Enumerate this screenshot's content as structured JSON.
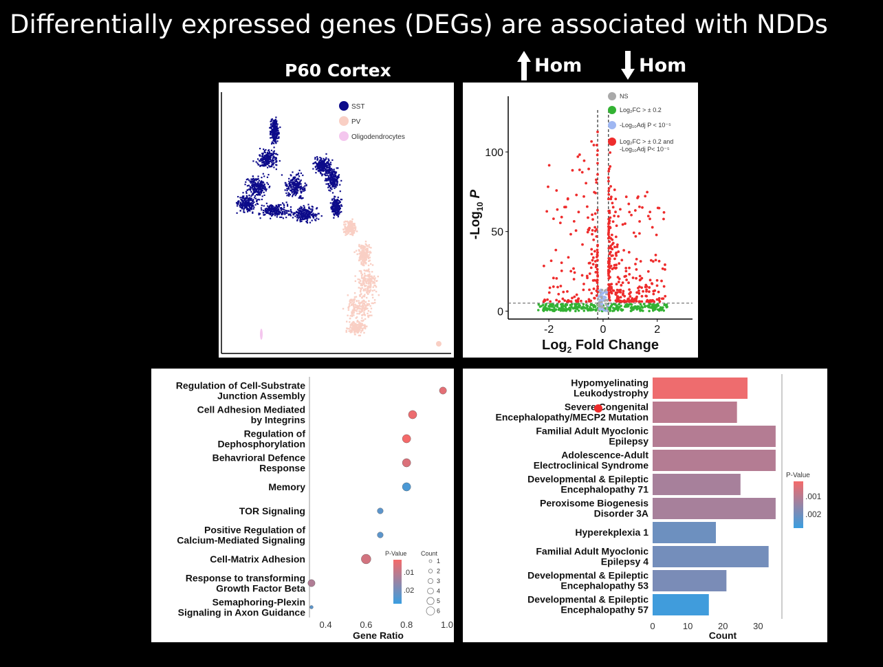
{
  "slide": {
    "title": "Differentially expressed genes (DEGs) are associated with NDDs",
    "umap_title": "P60 Cortex",
    "up_label": "Hom",
    "down_label": "Hom"
  },
  "colors": {
    "sst": "#0d0b8a",
    "pv": "#f9cfc4",
    "oligo": "#f4c6ee",
    "ns": "#a9a9a9",
    "fc": "#33b233",
    "p": "#9fb7f2",
    "both": "#ee2c2c",
    "pval_low": "#f46a6a",
    "pval_high": "#3a9ee0"
  },
  "chart_data": [
    {
      "type": "scatter",
      "name": "umap",
      "legend": [
        {
          "label": "SST",
          "color": "#0d0b8a"
        },
        {
          "label": "PV",
          "color": "#f9cfc4"
        },
        {
          "label": "Oligodendrocytes",
          "color": "#f4c6ee"
        }
      ],
      "legend_position": "top-right"
    },
    {
      "type": "scatter",
      "name": "volcano",
      "xlabel_main": "Log",
      "xlabel_sub": "2",
      "xlabel_tail": " Fold Change",
      "ylabel_main": "-Log",
      "ylabel_sub": "10",
      "ylabel_tail": " P",
      "xlim": [
        -3.5,
        3.3
      ],
      "ylim": [
        -5,
        135
      ],
      "x_ticks": [
        -2,
        0,
        2
      ],
      "y_ticks": [
        0,
        50,
        100
      ],
      "fc_cutoff": 0.2,
      "p_cutoff_line": 5,
      "legend": [
        {
          "label": "NS",
          "color": "#a9a9a9"
        },
        {
          "label": "Log₂FC > ± 0.2",
          "color": "#33b233"
        },
        {
          "label": "-Log₁₀Adj P < 10⁻⁵",
          "color": "#9fb7f2"
        },
        {
          "label": "Log₂FC > ± 0.2 and",
          "label2": "-Log₁₀Adj P< 10⁻⁵",
          "color": "#ee2c2c"
        }
      ]
    },
    {
      "type": "scatter",
      "name": "go_enrichment",
      "xlabel": "Gene Ratio",
      "xlim": [
        0.32,
        1.0
      ],
      "x_ticks": [
        0.4,
        0.6,
        0.8,
        1.0
      ],
      "x_tick_labels": [
        "0.4",
        "0.6",
        "0.8",
        "1.0"
      ],
      "categories": [
        [
          "Regulation of Cell-Substrate",
          "Junction Assembly"
        ],
        [
          "Cell Adhesion Mediated",
          "by Integrins"
        ],
        [
          "Regulation of",
          "Dephosphorylation"
        ],
        [
          "Behavrioral Defence",
          "Response"
        ],
        [
          "Memory"
        ],
        [
          "TOR Signaling"
        ],
        [
          "Positive Regulation of",
          "Calcium-Mediated Signaling"
        ],
        [
          "Cell-Matrix Adhesion"
        ],
        [
          "Response to transforming",
          "Growth Factor Beta"
        ],
        [
          "Semaphoring-Plexin",
          "Signaling in Axon Guidance"
        ]
      ],
      "gene_ratio": [
        0.98,
        0.83,
        0.8,
        0.8,
        0.8,
        0.67,
        0.67,
        0.6,
        0.33,
        0.33
      ],
      "count": [
        4,
        5,
        5,
        5,
        5,
        3,
        3,
        6,
        4,
        1
      ],
      "p_value": [
        0.004,
        0.003,
        0.002,
        0.005,
        0.022,
        0.02,
        0.02,
        0.006,
        0.01,
        0.02
      ],
      "legend_pvalue_title": "P-Value",
      "legend_pvalue_ticks": [
        ".01",
        ".02"
      ],
      "legend_pvalue_range": [
        0.002,
        0.024
      ],
      "legend_count_title": "Count",
      "legend_count_values": [
        "1",
        "2",
        "3",
        "4",
        "5",
        "6"
      ]
    },
    {
      "type": "bar",
      "name": "disease_enrichment",
      "xlabel": "Count",
      "xlim": [
        0,
        36
      ],
      "x_ticks": [
        0,
        10,
        20,
        30
      ],
      "categories": [
        [
          "Hypomyelinating",
          "Leukodystrophy"
        ],
        [
          "Severe Congenital",
          "Encephalopathy/MECP2 Mutation"
        ],
        [
          "Familial Adult Myoclonic",
          "Epilepsy"
        ],
        [
          "Adolescence-Adult",
          "Electroclinical Syndrome"
        ],
        [
          "Developmental & Epileptic",
          "Encephalopathy 71"
        ],
        [
          "Peroxisome Biogenesis",
          "Disorder 3A"
        ],
        [
          "Hyperekplexia 1"
        ],
        [
          "Familial Adult Myoclonic",
          "Epilepsy 4"
        ],
        [
          "Developmental & Epileptic",
          "Encephalopathy 53"
        ],
        [
          "Developmental & Epileptic",
          "Encephalopathy 57"
        ]
      ],
      "values": [
        27,
        24,
        35,
        35,
        25,
        35,
        18,
        33,
        21,
        16
      ],
      "p_value": [
        0.0002,
        0.001,
        0.0011,
        0.0011,
        0.0013,
        0.0013,
        0.0022,
        0.0021,
        0.002,
        0.0029
      ],
      "legend_title": "P-Value",
      "legend_ticks": [
        ".001",
        ".002"
      ],
      "legend_range": [
        0.0001,
        0.003
      ]
    }
  ]
}
